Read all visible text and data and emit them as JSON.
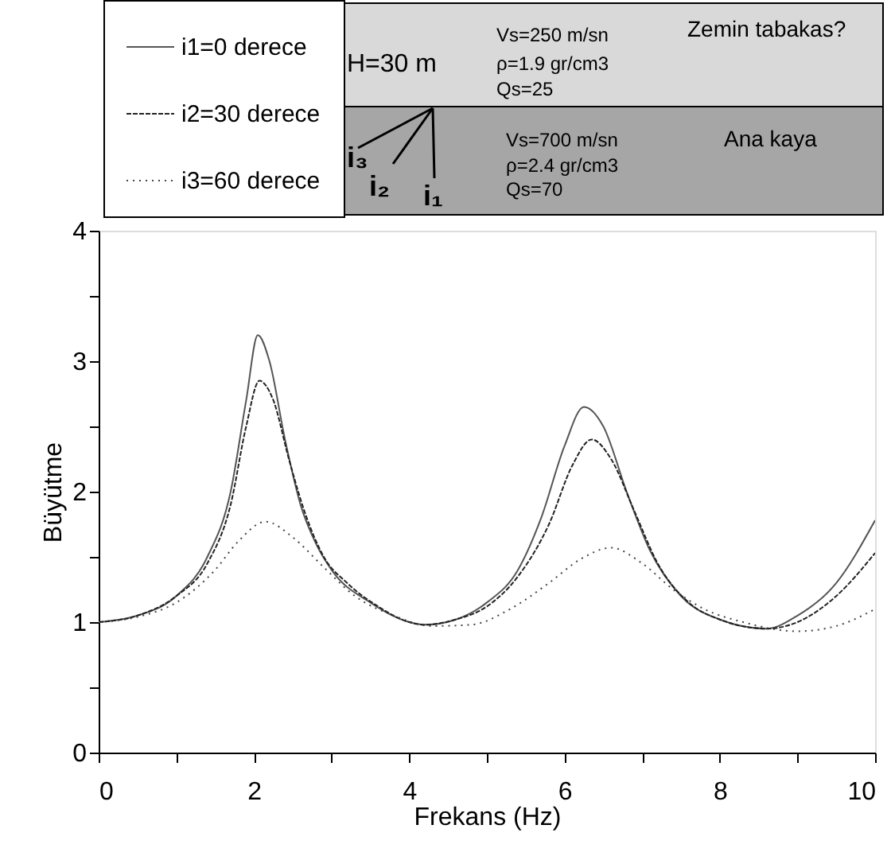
{
  "chart_data": {
    "type": "line",
    "xlabel": "Frekans (Hz)",
    "ylabel": "Büyütme",
    "xlim": [
      0,
      10
    ],
    "ylim": [
      0,
      4
    ],
    "xticks": [
      0,
      {
        "value": 1,
        "label": null
      },
      2,
      {
        "value": 3,
        "label": null
      },
      4,
      {
        "value": 5,
        "label": null
      },
      6,
      {
        "value": 7,
        "label": null
      },
      8,
      {
        "value": 9,
        "label": null
      },
      10
    ],
    "yticks": [
      0,
      {
        "value": 0.5,
        "label": null
      },
      1,
      {
        "value": 1.5,
        "label": null
      },
      2,
      {
        "value": 2.5,
        "label": null
      },
      3,
      {
        "value": 3.5,
        "label": null
      },
      4
    ],
    "grid": false,
    "legend": "top left",
    "marker": "none",
    "series": [
      {
        "name": "i1=0 derece",
        "color": "#555555",
        "line_style": "solid",
        "x": [
          0,
          0.5,
          1.0,
          1.4,
          1.7,
          1.9,
          2.05,
          2.2,
          2.4,
          2.6,
          2.8,
          3.0,
          3.5,
          4.0,
          4.2,
          4.6,
          5.0,
          5.4,
          5.7,
          6.0,
          6.25,
          6.5,
          6.8,
          7.1,
          7.5,
          8.0,
          8.6,
          9.0,
          9.5,
          10
        ],
        "values": [
          1.0,
          1.05,
          1.2,
          1.5,
          2.0,
          2.7,
          3.2,
          3.0,
          2.4,
          1.9,
          1.6,
          1.4,
          1.15,
          1.0,
          0.98,
          1.02,
          1.15,
          1.4,
          1.8,
          2.35,
          2.65,
          2.5,
          2.0,
          1.55,
          1.2,
          1.02,
          0.95,
          1.05,
          1.3,
          1.78
        ]
      },
      {
        "name": "i2=30 derece",
        "color": "#222222",
        "line_style": "dashed",
        "x": [
          0,
          0.5,
          1.0,
          1.4,
          1.7,
          1.9,
          2.07,
          2.25,
          2.45,
          2.65,
          2.9,
          3.2,
          3.6,
          4.0,
          4.2,
          4.6,
          5.0,
          5.4,
          5.8,
          6.1,
          6.35,
          6.6,
          6.9,
          7.2,
          7.6,
          8.0,
          8.6,
          9.0,
          9.5,
          10
        ],
        "values": [
          1.0,
          1.05,
          1.2,
          1.45,
          1.9,
          2.5,
          2.85,
          2.7,
          2.25,
          1.85,
          1.5,
          1.3,
          1.12,
          1.0,
          0.98,
          1.02,
          1.12,
          1.35,
          1.75,
          2.2,
          2.4,
          2.25,
          1.85,
          1.45,
          1.15,
          1.02,
          0.95,
          1.0,
          1.2,
          1.53
        ]
      },
      {
        "name": "i3=60 derece",
        "color": "#444444",
        "line_style": "dotted",
        "x": [
          0,
          0.5,
          1.0,
          1.5,
          1.8,
          2.15,
          2.5,
          2.9,
          3.3,
          3.8,
          4.3,
          4.8,
          5.3,
          5.8,
          6.2,
          6.6,
          7.0,
          7.4,
          7.8,
          8.3,
          9.0,
          9.5,
          10
        ],
        "values": [
          1.0,
          1.04,
          1.15,
          1.4,
          1.62,
          1.77,
          1.65,
          1.42,
          1.2,
          1.05,
          0.97,
          0.98,
          1.1,
          1.3,
          1.48,
          1.57,
          1.45,
          1.25,
          1.1,
          1.0,
          0.93,
          0.97,
          1.1
        ]
      }
    ],
    "annotations": [
      "H=30 m",
      "Vs=250 m/sn",
      "ρ=1.9 gr/cm3",
      "Qs=25",
      "Zemin tabakas?",
      "Vs=700 m/sn",
      "ρ=2.4 gr/cm3",
      "Qs=70",
      "Ana kaya",
      "i₃",
      "i₂",
      "i₁"
    ]
  }
}
